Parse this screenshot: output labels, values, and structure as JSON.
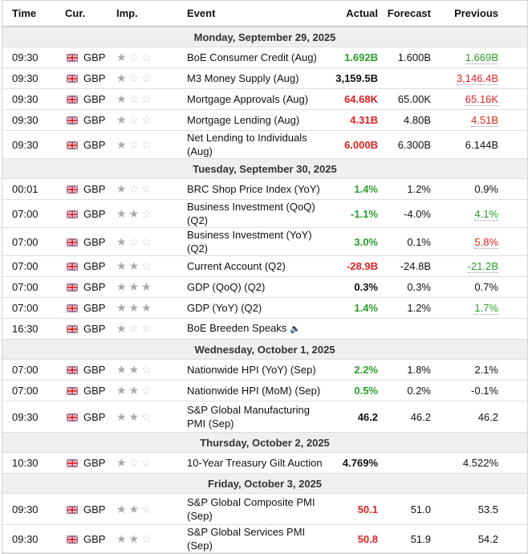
{
  "header": {
    "time": "Time",
    "cur": "Cur.",
    "imp": "Imp.",
    "event": "Event",
    "actual": "Actual",
    "forecast": "Forecast",
    "previous": "Previous"
  },
  "colors": {
    "positive": "#2a9d2a",
    "negative": "#dd2222"
  },
  "days": [
    {
      "date": "Monday, September 29, 2025",
      "events": [
        {
          "time": "09:30",
          "cur": "GBP",
          "imp": 1,
          "event": "BoE Consumer Credit (Aug)",
          "actual": "1.692B",
          "actual_color": "g",
          "forecast": "1.600B",
          "previous": "1.669B",
          "previous_color": "g",
          "revised": true
        },
        {
          "time": "09:30",
          "cur": "GBP",
          "imp": 1,
          "event": "M3 Money Supply (Aug)",
          "actual": "3,159.5B",
          "actual_color": "",
          "forecast": "",
          "previous": "3,146.4B",
          "previous_color": "r",
          "revised": true
        },
        {
          "time": "09:30",
          "cur": "GBP",
          "imp": 1,
          "event": "Mortgage Approvals (Aug)",
          "actual": "64.68K",
          "actual_color": "r",
          "forecast": "65.00K",
          "previous": "65.16K",
          "previous_color": "r",
          "revised": true
        },
        {
          "time": "09:30",
          "cur": "GBP",
          "imp": 1,
          "event": "Mortgage Lending (Aug)",
          "actual": "4.31B",
          "actual_color": "r",
          "forecast": "4.80B",
          "previous": "4.51B",
          "previous_color": "r",
          "revised": true
        },
        {
          "time": "09:30",
          "cur": "GBP",
          "imp": 1,
          "event": "Net Lending to Individuals (Aug)",
          "actual": "6.000B",
          "actual_color": "r",
          "forecast": "6.300B",
          "previous": "6.144B",
          "previous_color": "",
          "revised": false
        }
      ]
    },
    {
      "date": "Tuesday, September 30, 2025",
      "events": [
        {
          "time": "00:01",
          "cur": "GBP",
          "imp": 1,
          "event": "BRC Shop Price Index (YoY)",
          "actual": "1.4%",
          "actual_color": "g",
          "forecast": "1.2%",
          "previous": "0.9%",
          "previous_color": "",
          "revised": false
        },
        {
          "time": "07:00",
          "cur": "GBP",
          "imp": 2,
          "event": "Business Investment (QoQ) (Q2)",
          "actual": "-1.1%",
          "actual_color": "g",
          "forecast": "-4.0%",
          "previous": "4.1%",
          "previous_color": "g",
          "revised": true
        },
        {
          "time": "07:00",
          "cur": "GBP",
          "imp": 1,
          "event": "Business Investment (YoY) (Q2)",
          "actual": "3.0%",
          "actual_color": "g",
          "forecast": "0.1%",
          "previous": "5.8%",
          "previous_color": "r",
          "revised": true
        },
        {
          "time": "07:00",
          "cur": "GBP",
          "imp": 2,
          "event": "Current Account (Q2)",
          "actual": "-28.9B",
          "actual_color": "r",
          "forecast": "-24.8B",
          "previous": "-21.2B",
          "previous_color": "g",
          "revised": true
        },
        {
          "time": "07:00",
          "cur": "GBP",
          "imp": 3,
          "event": "GDP (QoQ) (Q2)",
          "actual": "0.3%",
          "actual_color": "",
          "forecast": "0.3%",
          "previous": "0.7%",
          "previous_color": "",
          "revised": false
        },
        {
          "time": "07:00",
          "cur": "GBP",
          "imp": 3,
          "event": "GDP (YoY) (Q2)",
          "actual": "1.4%",
          "actual_color": "g",
          "forecast": "1.2%",
          "previous": "1.7%",
          "previous_color": "g",
          "revised": true
        },
        {
          "time": "16:30",
          "cur": "GBP",
          "imp": 1,
          "event": "BoE Breeden Speaks",
          "speech": true,
          "actual": "",
          "actual_color": "",
          "forecast": "",
          "previous": "",
          "previous_color": "",
          "revised": false
        }
      ]
    },
    {
      "date": "Wednesday, October 1, 2025",
      "events": [
        {
          "time": "07:00",
          "cur": "GBP",
          "imp": 2,
          "event": "Nationwide HPI (YoY) (Sep)",
          "actual": "2.2%",
          "actual_color": "g",
          "forecast": "1.8%",
          "previous": "2.1%",
          "previous_color": "",
          "revised": false
        },
        {
          "time": "07:00",
          "cur": "GBP",
          "imp": 2,
          "event": "Nationwide HPI (MoM) (Sep)",
          "actual": "0.5%",
          "actual_color": "g",
          "forecast": "0.2%",
          "previous": "-0.1%",
          "previous_color": "",
          "revised": false
        },
        {
          "time": "09:30",
          "cur": "GBP",
          "imp": 2,
          "event": "S&P Global Manufacturing PMI (Sep)",
          "two": true,
          "actual": "46.2",
          "actual_color": "",
          "forecast": "46.2",
          "previous": "46.2",
          "previous_color": "",
          "revised": false
        }
      ]
    },
    {
      "date": "Thursday, October 2, 2025",
      "events": [
        {
          "time": "10:30",
          "cur": "GBP",
          "imp": 1,
          "event": "10-Year Treasury Gilt Auction",
          "actual": "4.769%",
          "actual_color": "",
          "forecast": "",
          "previous": "4.522%",
          "previous_color": "",
          "revised": false
        }
      ]
    },
    {
      "date": "Friday, October 3, 2025",
      "events": [
        {
          "time": "09:30",
          "cur": "GBP",
          "imp": 2,
          "event": "S&P Global Composite PMI (Sep)",
          "two": true,
          "actual": "50.1",
          "actual_color": "r",
          "forecast": "51.0",
          "previous": "53.5",
          "previous_color": "",
          "revised": false
        },
        {
          "time": "09:30",
          "cur": "GBP",
          "imp": 2,
          "event": "S&P Global Services PMI (Sep)",
          "actual": "50.8",
          "actual_color": "r",
          "forecast": "51.9",
          "previous": "54.2",
          "previous_color": "",
          "revised": false
        }
      ]
    }
  ]
}
